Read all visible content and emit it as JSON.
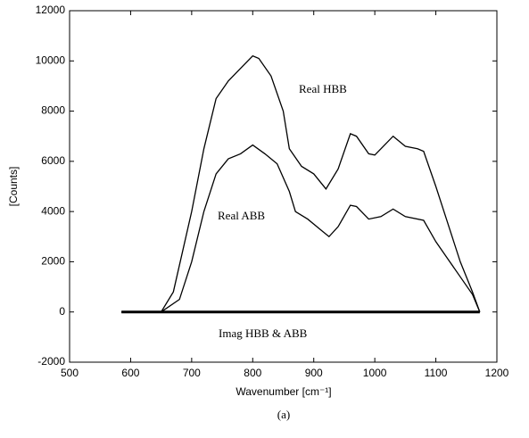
{
  "chart_data": {
    "type": "line",
    "xlabel": "Wavenumber [cm⁻¹]",
    "ylabel": "[Counts]",
    "caption": "(a)",
    "xlim": [
      500,
      1200
    ],
    "xticks": [
      500,
      600,
      700,
      800,
      900,
      1000,
      1100,
      1200
    ],
    "ylim": [
      -2000,
      12000
    ],
    "yticks": [
      -2000,
      0,
      2000,
      4000,
      6000,
      8000,
      10000,
      12000
    ],
    "series": [
      {
        "name": "Real HBB",
        "color": "#000000",
        "x": [
          585,
          600,
          650,
          670,
          700,
          720,
          740,
          760,
          780,
          800,
          810,
          830,
          850,
          860,
          880,
          900,
          920,
          940,
          960,
          970,
          990,
          1000,
          1010,
          1030,
          1050,
          1070,
          1080,
          1100,
          1120,
          1140,
          1160,
          1172
        ],
        "values": [
          0,
          0,
          0,
          800,
          4000,
          6500,
          8500,
          9200,
          9700,
          10200,
          10100,
          9400,
          8000,
          6500,
          5800,
          5500,
          4900,
          5700,
          7100,
          7000,
          6300,
          6250,
          6500,
          7000,
          6600,
          6500,
          6400,
          5000,
          3500,
          2000,
          800,
          0
        ]
      },
      {
        "name": "Real ABB",
        "color": "#000000",
        "x": [
          585,
          650,
          680,
          700,
          720,
          740,
          760,
          780,
          800,
          820,
          840,
          860,
          870,
          890,
          910,
          925,
          940,
          960,
          970,
          990,
          1010,
          1030,
          1050,
          1080,
          1100,
          1120,
          1140,
          1160,
          1172
        ],
        "values": [
          0,
          0,
          500,
          2000,
          4000,
          5500,
          6100,
          6300,
          6650,
          6300,
          5900,
          4800,
          4000,
          3700,
          3300,
          3000,
          3400,
          4250,
          4200,
          3700,
          3800,
          4100,
          3800,
          3650,
          2800,
          2100,
          1400,
          700,
          0
        ]
      },
      {
        "name": "Imag HBB & ABB",
        "color": "#000000",
        "x": [
          585,
          1172
        ],
        "values": [
          0,
          0
        ]
      }
    ]
  }
}
